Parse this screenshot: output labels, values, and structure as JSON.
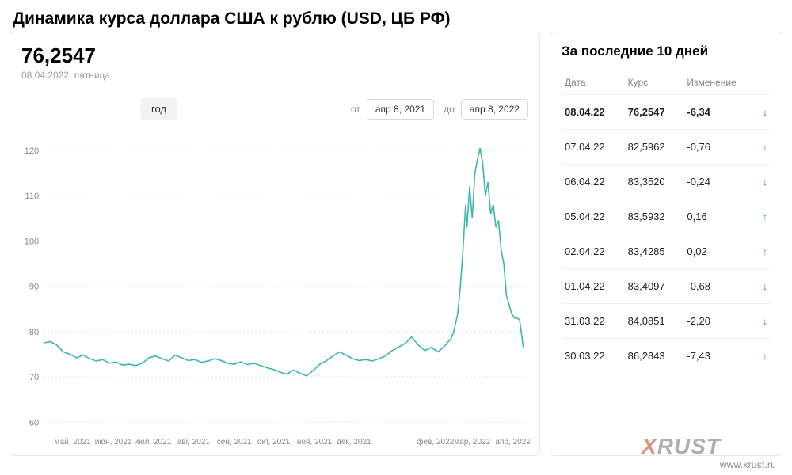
{
  "title": "Динамика курса доллара США к рублю (USD, ЦБ РФ)",
  "current": {
    "value": "76,2547",
    "date_label": "08.04.2022, пятница"
  },
  "controls": {
    "period_label": "год",
    "from_label": "от",
    "to_label": "до",
    "date_from": "апр 8, 2021",
    "date_to": "апр 8, 2022"
  },
  "chart": {
    "type": "line",
    "line_color": "#3fb6b0",
    "grid_color": "#e5e5e5",
    "axis_label_color": "#888888",
    "background_color": "#ffffff",
    "y_ticks": [
      60,
      70,
      80,
      90,
      100,
      110,
      120
    ],
    "ylim": [
      58,
      124
    ],
    "xlim": [
      0,
      365
    ],
    "x_labels": [
      {
        "x": 22,
        "label": "май, 2021"
      },
      {
        "x": 53,
        "label": "июн, 2021"
      },
      {
        "x": 83,
        "label": "июл, 2021"
      },
      {
        "x": 114,
        "label": "авг, 2021"
      },
      {
        "x": 145,
        "label": "сен, 2021"
      },
      {
        "x": 175,
        "label": "окт, 2021"
      },
      {
        "x": 206,
        "label": "ноя, 2021"
      },
      {
        "x": 236,
        "label": "дек, 2021"
      },
      {
        "x": 298,
        "label": "фев, 2022"
      },
      {
        "x": 326,
        "label": "мар, 2022"
      },
      {
        "x": 357,
        "label": "апр, 2022"
      }
    ],
    "series": [
      {
        "x": 0,
        "y": 77.5
      },
      {
        "x": 5,
        "y": 77.8
      },
      {
        "x": 10,
        "y": 77.0
      },
      {
        "x": 15,
        "y": 75.5
      },
      {
        "x": 20,
        "y": 75.0
      },
      {
        "x": 25,
        "y": 74.2
      },
      {
        "x": 30,
        "y": 74.8
      },
      {
        "x": 35,
        "y": 74.0
      },
      {
        "x": 40,
        "y": 73.5
      },
      {
        "x": 45,
        "y": 73.8
      },
      {
        "x": 50,
        "y": 73.0
      },
      {
        "x": 55,
        "y": 73.3
      },
      {
        "x": 60,
        "y": 72.6
      },
      {
        "x": 65,
        "y": 72.8
      },
      {
        "x": 70,
        "y": 72.5
      },
      {
        "x": 75,
        "y": 73.0
      },
      {
        "x": 80,
        "y": 74.2
      },
      {
        "x": 85,
        "y": 74.6
      },
      {
        "x": 90,
        "y": 74.0
      },
      {
        "x": 95,
        "y": 73.5
      },
      {
        "x": 100,
        "y": 74.8
      },
      {
        "x": 105,
        "y": 74.2
      },
      {
        "x": 110,
        "y": 73.6
      },
      {
        "x": 115,
        "y": 73.8
      },
      {
        "x": 120,
        "y": 73.2
      },
      {
        "x": 125,
        "y": 73.5
      },
      {
        "x": 130,
        "y": 74.0
      },
      {
        "x": 135,
        "y": 73.6
      },
      {
        "x": 140,
        "y": 73.0
      },
      {
        "x": 145,
        "y": 72.8
      },
      {
        "x": 150,
        "y": 73.3
      },
      {
        "x": 155,
        "y": 72.7
      },
      {
        "x": 160,
        "y": 73.0
      },
      {
        "x": 165,
        "y": 72.5
      },
      {
        "x": 170,
        "y": 72.0
      },
      {
        "x": 175,
        "y": 71.6
      },
      {
        "x": 180,
        "y": 71.0
      },
      {
        "x": 185,
        "y": 70.6
      },
      {
        "x": 190,
        "y": 71.5
      },
      {
        "x": 195,
        "y": 70.8
      },
      {
        "x": 200,
        "y": 70.2
      },
      {
        "x": 205,
        "y": 71.4
      },
      {
        "x": 210,
        "y": 72.8
      },
      {
        "x": 215,
        "y": 73.5
      },
      {
        "x": 220,
        "y": 74.6
      },
      {
        "x": 225,
        "y": 75.5
      },
      {
        "x": 230,
        "y": 74.8
      },
      {
        "x": 235,
        "y": 74.0
      },
      {
        "x": 240,
        "y": 73.6
      },
      {
        "x": 245,
        "y": 73.8
      },
      {
        "x": 250,
        "y": 73.5
      },
      {
        "x": 255,
        "y": 74.0
      },
      {
        "x": 260,
        "y": 74.6
      },
      {
        "x": 265,
        "y": 75.8
      },
      {
        "x": 270,
        "y": 76.6
      },
      {
        "x": 275,
        "y": 77.4
      },
      {
        "x": 280,
        "y": 78.8
      },
      {
        "x": 285,
        "y": 77.0
      },
      {
        "x": 290,
        "y": 75.8
      },
      {
        "x": 295,
        "y": 76.5
      },
      {
        "x": 300,
        "y": 75.5
      },
      {
        "x": 305,
        "y": 76.8
      },
      {
        "x": 310,
        "y": 78.5
      },
      {
        "x": 312,
        "y": 80.0
      },
      {
        "x": 315,
        "y": 84.0
      },
      {
        "x": 317,
        "y": 90.0
      },
      {
        "x": 319,
        "y": 98.0
      },
      {
        "x": 321,
        "y": 108.0
      },
      {
        "x": 322,
        "y": 103.0
      },
      {
        "x": 324,
        "y": 112.0
      },
      {
        "x": 326,
        "y": 105.0
      },
      {
        "x": 328,
        "y": 115.0
      },
      {
        "x": 330,
        "y": 118.0
      },
      {
        "x": 332,
        "y": 120.5
      },
      {
        "x": 334,
        "y": 117.0
      },
      {
        "x": 336,
        "y": 110.0
      },
      {
        "x": 338,
        "y": 113.0
      },
      {
        "x": 340,
        "y": 106.0
      },
      {
        "x": 342,
        "y": 108.0
      },
      {
        "x": 344,
        "y": 103.0
      },
      {
        "x": 346,
        "y": 104.5
      },
      {
        "x": 348,
        "y": 98.0
      },
      {
        "x": 350,
        "y": 95.0
      },
      {
        "x": 352,
        "y": 88.0
      },
      {
        "x": 354,
        "y": 86.0
      },
      {
        "x": 356,
        "y": 84.0
      },
      {
        "x": 358,
        "y": 83.0
      },
      {
        "x": 360,
        "y": 83.0
      },
      {
        "x": 362,
        "y": 82.6
      },
      {
        "x": 365,
        "y": 76.3
      }
    ]
  },
  "table": {
    "title": "За последние 10 дней",
    "columns": {
      "date": "Дата",
      "rate": "Курс",
      "change": "Изменение"
    },
    "arrow_up_color": "#2fae5f",
    "arrow_down_color": "#d93a3a",
    "rows": [
      {
        "date": "08.04.22",
        "rate": "76,2547",
        "change": "-6,34",
        "dir": "down",
        "bold": true
      },
      {
        "date": "07.04.22",
        "rate": "82,5962",
        "change": "-0,76",
        "dir": "down",
        "bold": false
      },
      {
        "date": "06.04.22",
        "rate": "83,3520",
        "change": "-0,24",
        "dir": "down",
        "bold": false
      },
      {
        "date": "05.04.22",
        "rate": "83,5932",
        "change": "0,16",
        "dir": "up",
        "bold": false
      },
      {
        "date": "02.04.22",
        "rate": "83,4285",
        "change": "0,02",
        "dir": "up",
        "bold": false
      },
      {
        "date": "01.04.22",
        "rate": "83,4097",
        "change": "-0,68",
        "dir": "down",
        "bold": false
      },
      {
        "date": "31.03.22",
        "rate": "84,0851",
        "change": "-2,20",
        "dir": "down",
        "bold": false
      },
      {
        "date": "30.03.22",
        "rate": "86,2843",
        "change": "-7,43",
        "dir": "down",
        "bold": false
      }
    ]
  },
  "watermark": {
    "text": "www.xrust.ru",
    "logo_a": "X",
    "logo_b": "RUST"
  }
}
